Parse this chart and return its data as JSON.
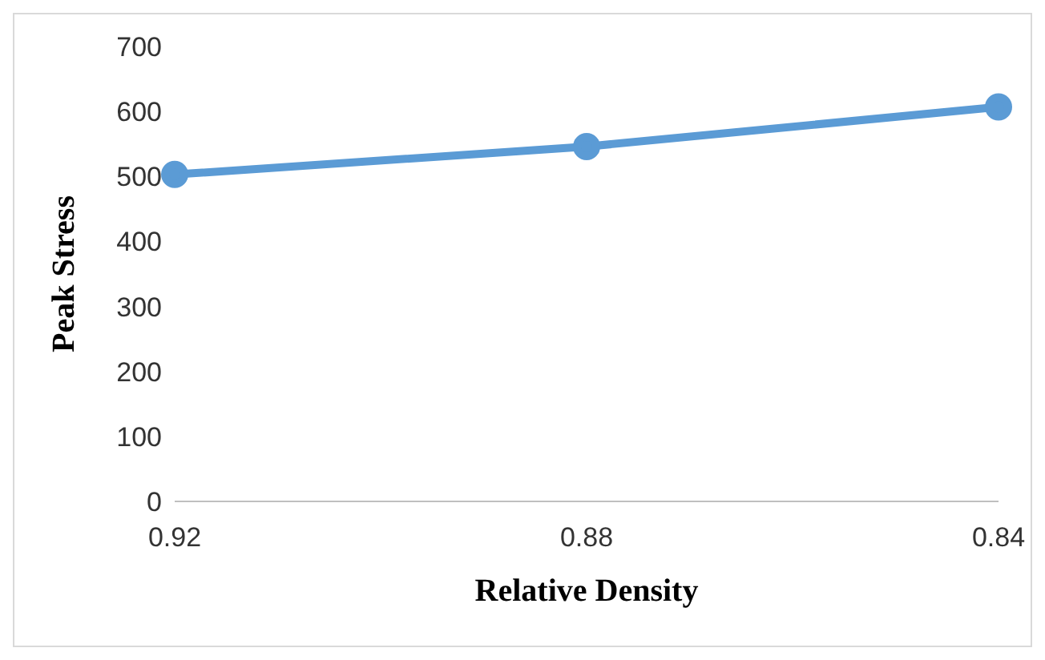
{
  "chart_data": {
    "type": "line",
    "xlabel": "Relative Density",
    "ylabel": "Peak Stress",
    "categories": [
      "0.92",
      "0.88",
      "0.84"
    ],
    "series": [
      {
        "color": "#5b9bd5",
        "values": [
          503,
          546,
          607
        ]
      }
    ],
    "ylim": [
      0,
      700
    ],
    "yticks": [
      0,
      100,
      200,
      300,
      400,
      500,
      600,
      700
    ],
    "grid": false,
    "legend": false,
    "marker": "circle",
    "line_style": "solid"
  }
}
